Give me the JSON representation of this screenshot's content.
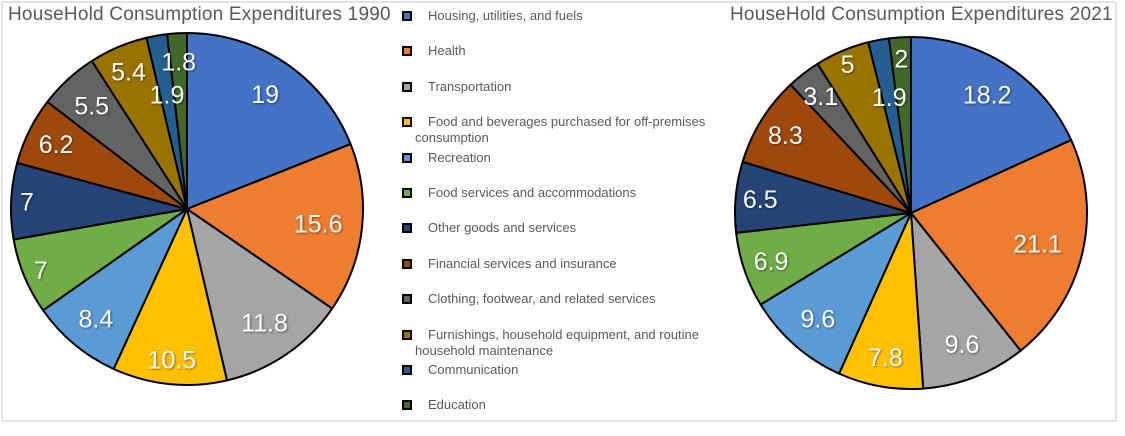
{
  "chart_data": [
    {
      "type": "pie",
      "title": "HouseHold Consumption Expenditures 1990",
      "categories": [
        "Housing, utilities, and fuels",
        "Health",
        "Transportation",
        "Food and beverages purchased for off-premises consumption",
        "Recreation",
        "Food services and accommodations",
        "Other goods and services",
        "Financial services and insurance",
        "Clothing, footwear, and related services",
        "Furnishings, household equipment, and routine household maintenance",
        "Communication",
        "Education"
      ],
      "values": [
        19,
        15.6,
        11.8,
        10.5,
        8.4,
        7,
        7,
        6.2,
        5.5,
        5.4,
        1.9,
        1.8
      ],
      "labels": [
        "19",
        "15.6",
        "11.8",
        "10.5",
        "8.4",
        "7",
        "7",
        "6.2",
        "5.5",
        "5.4",
        "1.9",
        "1.8"
      ],
      "colors": [
        "#4472C4",
        "#ED7D31",
        "#A5A5A5",
        "#FFC000",
        "#5B9BD5",
        "#70AD47",
        "#264478",
        "#9E480E",
        "#636363",
        "#997300",
        "#255E91",
        "#43682B"
      ],
      "label_color": "#FFFFFF",
      "start_angle_deg": 0,
      "direction": "clockwise",
      "legend_position": "center-shared"
    },
    {
      "type": "pie",
      "title": "HouseHold Consumption Expenditures 2021",
      "categories": [
        "Housing, utilities, and fuels",
        "Health",
        "Transportation",
        "Food and beverages purchased for off-premises consumption",
        "Recreation",
        "Food services and accommodations",
        "Other goods and services",
        "Financial services and insurance",
        "Clothing, footwear, and related services",
        "Furnishings, household equipment, and routine household maintenance",
        "Communication",
        "Education"
      ],
      "values": [
        18.2,
        21.1,
        9.6,
        7.8,
        9.6,
        6.9,
        6.5,
        8.3,
        3.1,
        5,
        1.9,
        2
      ],
      "labels": [
        "18.2",
        "21.1",
        "9.6",
        "7.8",
        "9.6",
        "6.9",
        "6.5",
        "8.3",
        "3.1",
        "5",
        "1.9",
        "2"
      ],
      "colors": [
        "#4472C4",
        "#ED7D31",
        "#A5A5A5",
        "#FFC000",
        "#5B9BD5",
        "#70AD47",
        "#264478",
        "#9E480E",
        "#636363",
        "#997300",
        "#255E91",
        "#43682B"
      ],
      "label_color": "#FFFFFF",
      "start_angle_deg": 0,
      "direction": "clockwise",
      "legend_position": "center-shared"
    }
  ],
  "frame": {
    "border_color": "#E2E2E2",
    "background": "#FFFFFF"
  },
  "titles": {
    "color": "#595959"
  }
}
